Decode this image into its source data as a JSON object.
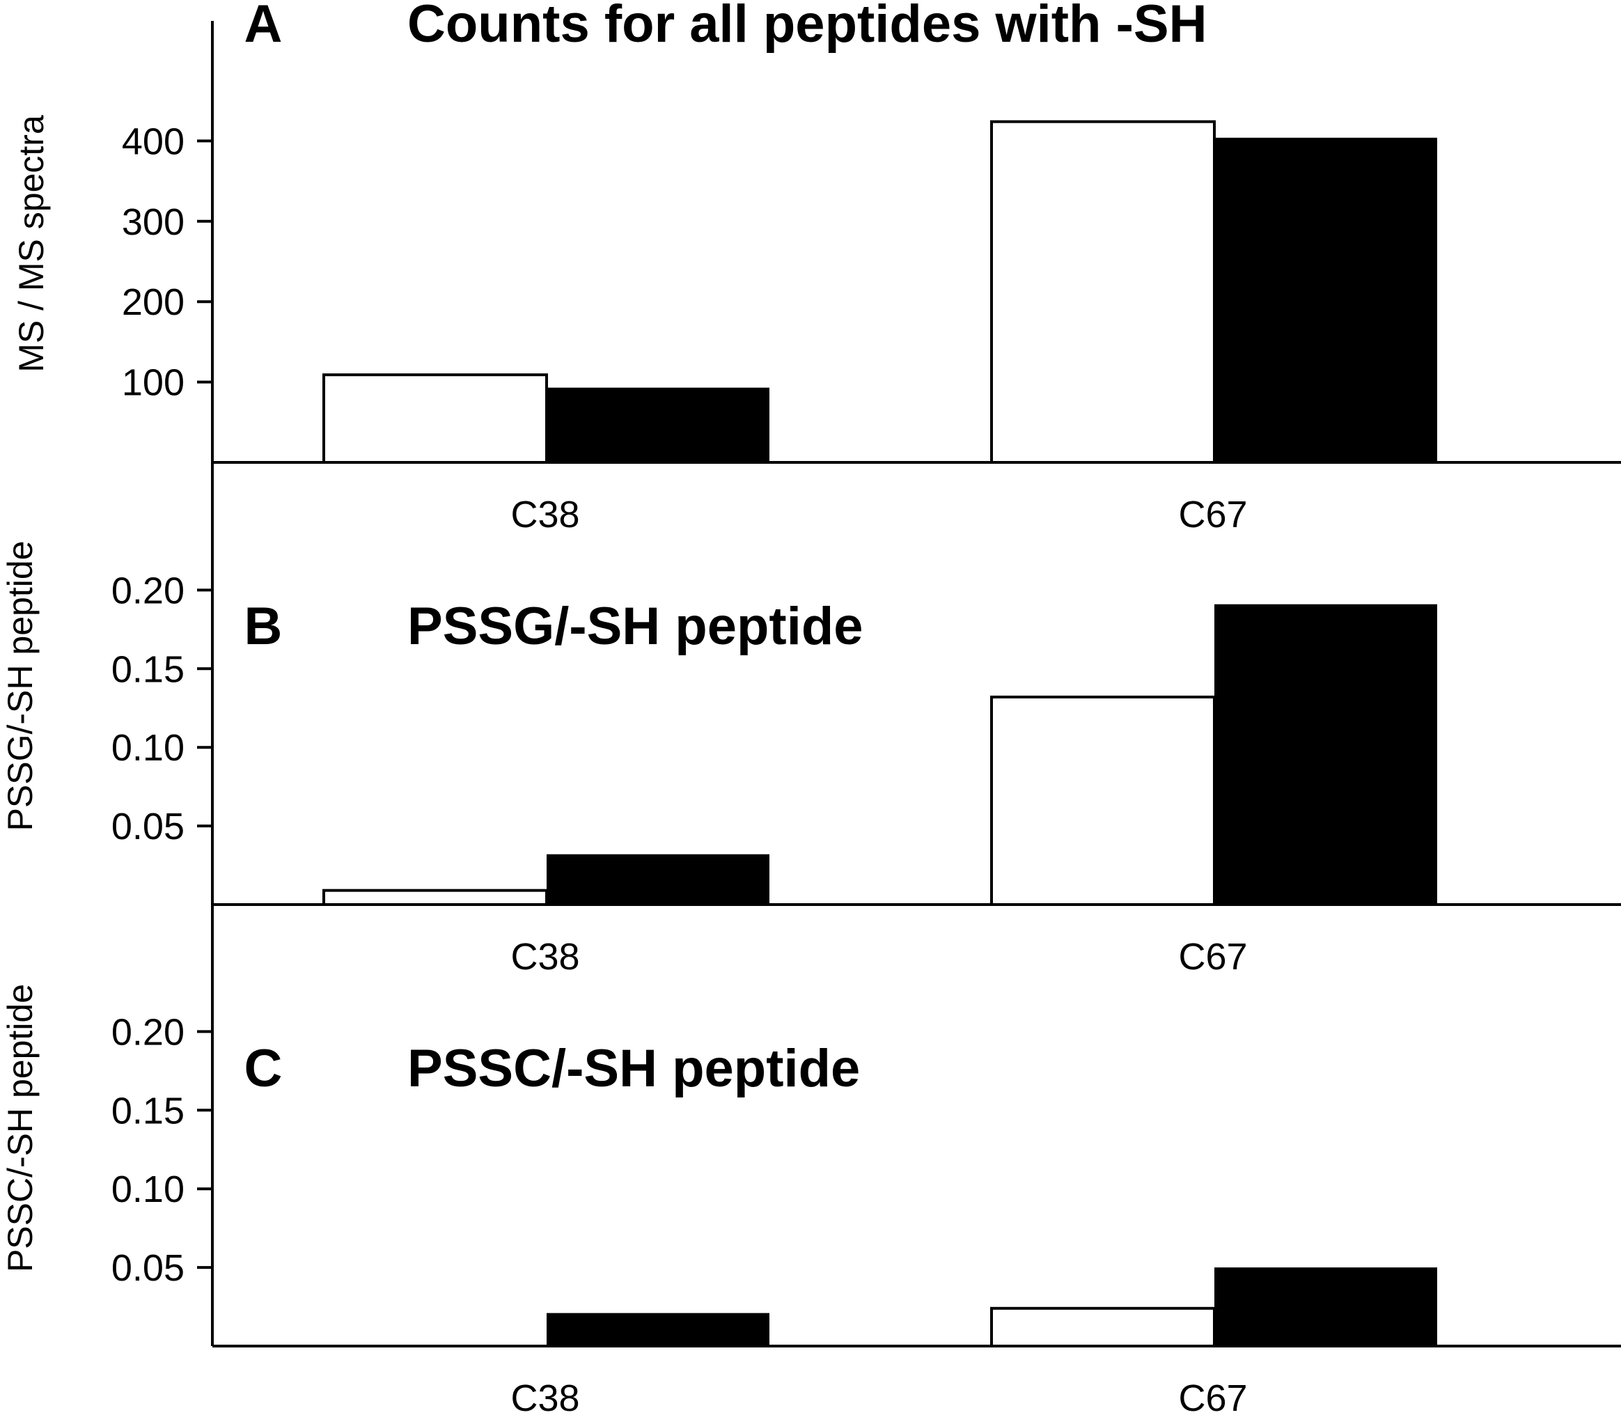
{
  "chart_data": [
    {
      "panel": "A",
      "type": "bar",
      "title": "Counts for all peptides with -SH",
      "ylabel": "MS / MS spectra",
      "xlabel": "",
      "categories": [
        "C38",
        "C67"
      ],
      "yticks": [
        "100",
        "200",
        "300",
        "400"
      ],
      "ylim": [
        0,
        500
      ],
      "series": [
        {
          "name": "white",
          "color": "#ffffff",
          "values": [
            109,
            424
          ]
        },
        {
          "name": "black",
          "color": "#000000",
          "values": [
            93,
            404
          ]
        }
      ]
    },
    {
      "panel": "B",
      "type": "bar",
      "title": "PSSG/-SH peptide",
      "ylabel": "PSSG/-SH peptide",
      "xlabel": "",
      "categories": [
        "C38",
        "C67"
      ],
      "yticks": [
        "0.05",
        "0.10",
        "0.15",
        "0.20"
      ],
      "ylim": [
        0,
        0.25
      ],
      "series": [
        {
          "name": "white",
          "color": "#ffffff",
          "values": [
            0.009,
            0.132
          ]
        },
        {
          "name": "black",
          "color": "#000000",
          "values": [
            0.032,
            0.191
          ]
        }
      ]
    },
    {
      "panel": "C",
      "type": "bar",
      "title": "PSSC/-SH peptide",
      "ylabel": "PSSC/-SH peptide",
      "xlabel": "",
      "categories": [
        "C38",
        "C67"
      ],
      "yticks": [
        "0.05",
        "0.10",
        "0.15",
        "0.20"
      ],
      "ylim": [
        0,
        0.25
      ],
      "series": [
        {
          "name": "white",
          "color": "#ffffff",
          "values": [
            0,
            0.024
          ]
        },
        {
          "name": "black",
          "color": "#000000",
          "values": [
            0.021,
            0.05
          ]
        }
      ]
    }
  ]
}
